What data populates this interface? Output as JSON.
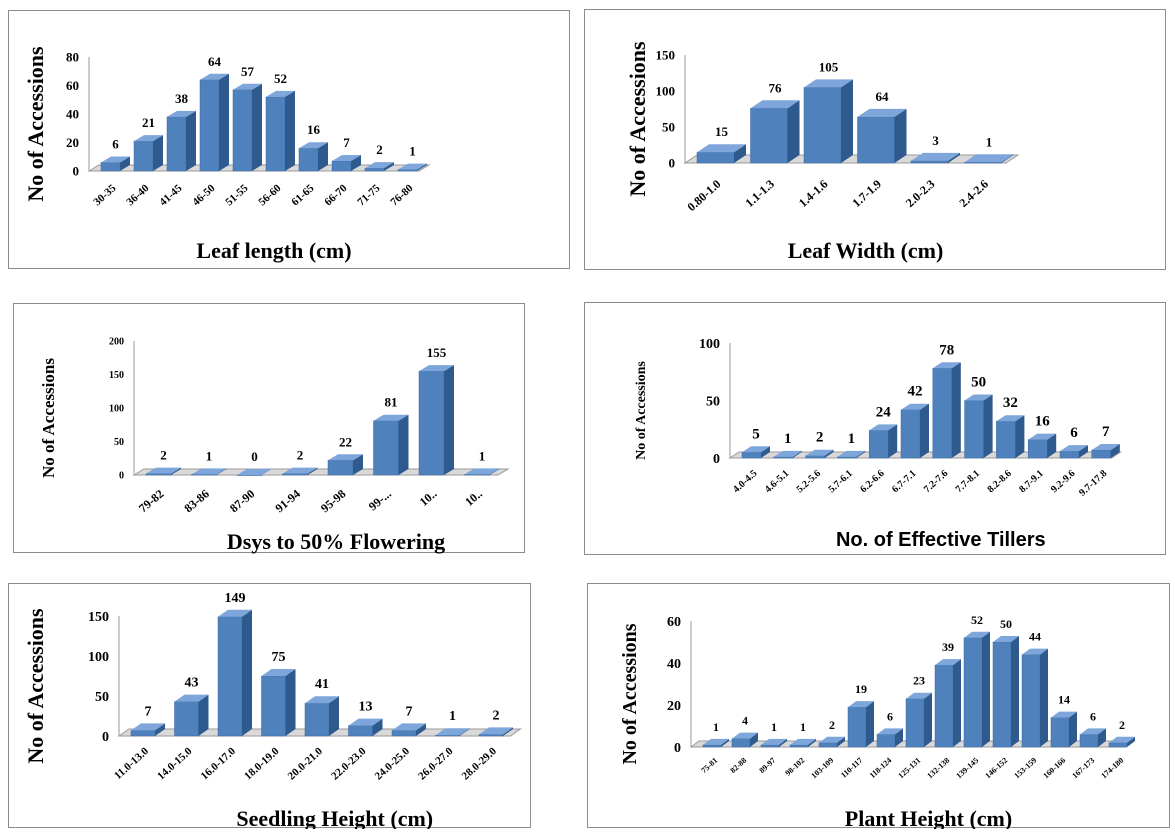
{
  "colors": {
    "bar_front": "#4F81BD",
    "bar_side": "#2E5A8E",
    "bar_top": "#7EA6DA",
    "axis": "#9a9a9a",
    "floor": "#d9d9d9"
  },
  "chart_data": [
    {
      "type": "bar",
      "xlabel": "Leaf length (cm)",
      "ylabel": "No of Accessions",
      "categories": [
        "30-35",
        "36-40",
        "41-45",
        "46-50",
        "51-55",
        "56-60",
        "61-65",
        "66-70",
        "71-75",
        "76-80"
      ],
      "values": [
        6,
        21,
        38,
        64,
        57,
        52,
        16,
        7,
        2,
        1
      ],
      "value_labels": [
        "6",
        "21",
        "38",
        "64",
        "57",
        "52",
        "16",
        "7",
        "2",
        "1"
      ],
      "ylim": [
        0,
        80
      ],
      "yticks": [
        0,
        20,
        40,
        60,
        80
      ],
      "grid": false,
      "style": "3d-column"
    },
    {
      "type": "bar",
      "xlabel": "Leaf Width (cm)",
      "ylabel": "No of Accessions",
      "categories": [
        "0.80-1.0",
        "1.1-1.3",
        "1.4-1.6",
        "1.7-1.9",
        "2.0-2.3",
        "2.4-2.6"
      ],
      "values": [
        15,
        76,
        105,
        64,
        3,
        1
      ],
      "value_labels": [
        "15",
        "76",
        "105",
        "64",
        "3",
        "1"
      ],
      "ylim": [
        0,
        150
      ],
      "yticks": [
        0,
        50,
        100,
        150
      ],
      "grid": false,
      "style": "3d-column"
    },
    {
      "type": "bar",
      "xlabel": "Dsys to 50% Flowering",
      "ylabel": "No of Accessions",
      "categories": [
        "79-82",
        "83-86",
        "87-90",
        "91-94",
        "95-98",
        "99-...",
        "10..",
        "10.."
      ],
      "values": [
        2,
        1,
        0,
        2,
        22,
        81,
        155,
        1
      ],
      "value_labels": [
        "2",
        "1",
        "0",
        "2",
        "22",
        "81",
        "155",
        "1"
      ],
      "ylim": [
        0,
        200
      ],
      "yticks": [
        0,
        50,
        100,
        150,
        200
      ],
      "grid": false,
      "style": "3d-column"
    },
    {
      "type": "bar",
      "xlabel": "No. of Effective Tillers",
      "ylabel": "No of Accessions",
      "categories": [
        "4.0-4.5",
        "4.6-5.1",
        "5.2-5.6",
        "5.7-6.1",
        "6.2-6.6",
        "6.7-7.1",
        "7.2-7.6",
        "7.7-8.1",
        "8.2-8.6",
        "8.7-9.1",
        "9.2-9.6",
        "9.7-17.8"
      ],
      "values": [
        5,
        1,
        2,
        1,
        24,
        42,
        78,
        50,
        32,
        16,
        6,
        7
      ],
      "value_labels": [
        "5",
        "1",
        "2",
        "1",
        "24",
        "42",
        "78",
        "50",
        "32",
        "16",
        "6",
        "7"
      ],
      "ylim": [
        0,
        100
      ],
      "yticks": [
        0,
        50,
        100
      ],
      "grid": false,
      "style": "3d-column"
    },
    {
      "type": "bar",
      "xlabel": "Seedling Height (cm)",
      "ylabel": "No of Accessions",
      "categories": [
        "11.0-13.0",
        "14.0-15.0",
        "16.0-17.0",
        "18.0-19.0",
        "20.0-21.0",
        "22.0-23.0",
        "24.0-25.0",
        "26.0-27.0",
        "28.0-29.0"
      ],
      "values": [
        7,
        43,
        149,
        75,
        41,
        13,
        7,
        1,
        2
      ],
      "value_labels": [
        "7",
        "43",
        "149",
        "75",
        "41",
        "13",
        "7",
        "1",
        "2"
      ],
      "ylim": [
        0,
        150
      ],
      "yticks": [
        0,
        50,
        100,
        150
      ],
      "grid": false,
      "style": "3d-column"
    },
    {
      "type": "bar",
      "xlabel": "Plant Height (cm)",
      "ylabel": "No of Accessions",
      "categories": [
        "75-81",
        "82-88",
        "89-97",
        "98-102",
        "103-109",
        "110-117",
        "118-124",
        "125-131",
        "132-138",
        "139-145",
        "146-152",
        "153-159",
        "160-166",
        "167-173",
        "174-180"
      ],
      "values": [
        1,
        4,
        1,
        1,
        2,
        19,
        6,
        23,
        39,
        52,
        50,
        44,
        14,
        6,
        2
      ],
      "value_labels": [
        "1",
        "4",
        "1",
        "1",
        "2",
        "19",
        "6",
        "23",
        "39",
        "52",
        "50",
        "44",
        "14",
        "6",
        "2"
      ],
      "ylim": [
        0,
        60
      ],
      "yticks": [
        0,
        20,
        40,
        60
      ],
      "grid": false,
      "style": "3d-column"
    }
  ]
}
